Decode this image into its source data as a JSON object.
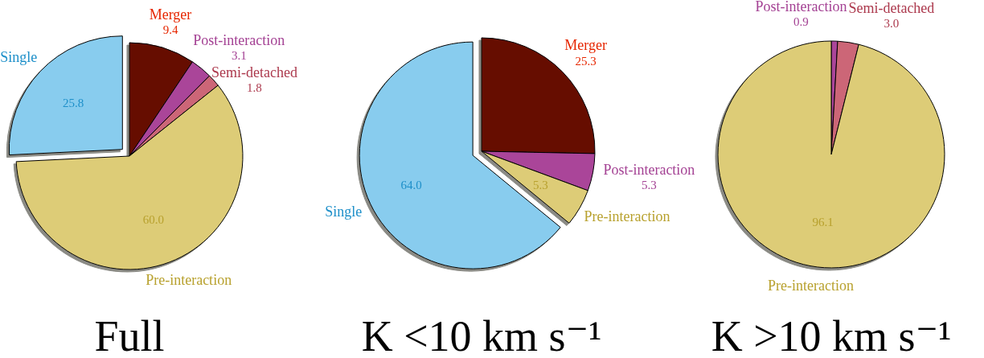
{
  "chart_data": [
    {
      "type": "pie",
      "title": "Full",
      "categories": [
        "Merger",
        "Post-interaction",
        "Semi-detached",
        "Pre-interaction",
        "Single"
      ],
      "values": [
        9.4,
        3.1,
        1.8,
        60.0,
        25.8
      ],
      "value_labels": [
        "9.4",
        "3.1",
        "1.8",
        "60.0",
        "25.8"
      ],
      "colors": [
        "#661100",
        "#aa4499",
        "#cc6677",
        "#ddcc77",
        "#88ccee"
      ]
    },
    {
      "type": "pie",
      "title": "K <10 km s⁻¹",
      "categories": [
        "Merger",
        "Post-interaction",
        "Pre-interaction",
        "Single"
      ],
      "values": [
        25.3,
        5.3,
        5.3,
        64.0
      ],
      "value_labels": [
        "25.3",
        "5.3",
        "5.3",
        "64.0"
      ],
      "colors": [
        "#661100",
        "#aa4499",
        "#ddcc77",
        "#88ccee"
      ]
    },
    {
      "type": "pie",
      "title": "K >10 km s⁻¹",
      "categories": [
        "Post-interaction",
        "Semi-detached",
        "Pre-interaction"
      ],
      "values": [
        0.9,
        3.0,
        96.1
      ],
      "value_labels": [
        "0.9",
        "3.0",
        "96.1"
      ],
      "colors": [
        "#aa4499",
        "#cc6677",
        "#ddcc77"
      ]
    }
  ]
}
